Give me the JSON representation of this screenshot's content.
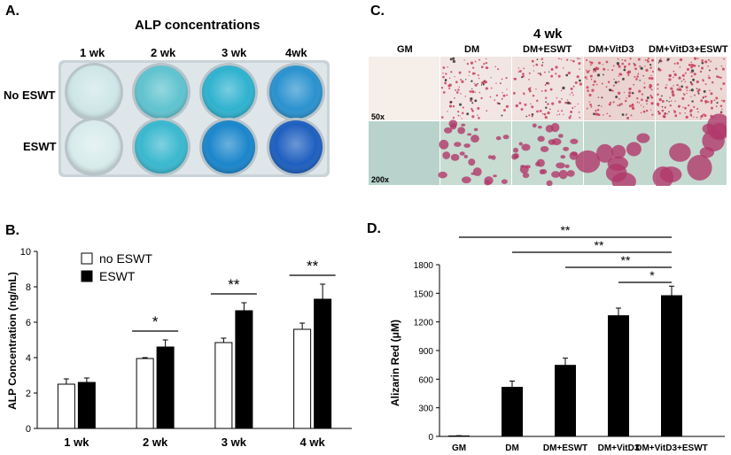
{
  "panel_labels": {
    "a": "A.",
    "b": "B.",
    "c": "C.",
    "d": "D."
  },
  "panel_a": {
    "title": "ALP concentrations",
    "col_labels": [
      "1 wk",
      "2 wk",
      "3 wk",
      "4wk"
    ],
    "row_labels": [
      "No ESWT",
      "ESWT"
    ],
    "well_colors": [
      [
        "#cfe7e8",
        "#5fc3cf",
        "#2fb2cf",
        "#2a92cf"
      ],
      [
        "#d9ecec",
        "#3ab8cf",
        "#1a86cb",
        "#1e5fbf"
      ]
    ]
  },
  "panel_c": {
    "title": "4 wk",
    "col_labels": [
      "GM",
      "DM",
      "DM+ESWT",
      "DM+VitD3",
      "DM+VitD3+ESWT"
    ],
    "row_labels": [
      "50x",
      "200x"
    ]
  },
  "chart_data": [
    {
      "type": "bar",
      "ylabel": "ALP  Concentration (ng/mL)",
      "categories": [
        "1 wk",
        "2 wk",
        "3 wk",
        "4 wk"
      ],
      "ylim": [
        0,
        10
      ],
      "yticks": [
        "0",
        "2",
        "4",
        "6",
        "8",
        "10"
      ],
      "series": [
        {
          "name": "no ESWT",
          "color": "#ffffff",
          "values": [
            2.5,
            3.95,
            4.85,
            5.6
          ],
          "errors": [
            0.3,
            0.05,
            0.25,
            0.35
          ]
        },
        {
          "name": "ESWT",
          "color": "#000000",
          "values": [
            2.6,
            4.6,
            6.65,
            7.3
          ],
          "errors": [
            0.25,
            0.4,
            0.45,
            0.85
          ]
        }
      ],
      "significance": [
        "",
        "*",
        "**",
        "**"
      ],
      "legend": "top-left"
    },
    {
      "type": "bar",
      "ylabel": "Alizarin Red (μM)",
      "categories": [
        "GM",
        "DM",
        "DM+ESWT",
        "DM+VitD3",
        "DM+VitD3+ESWT"
      ],
      "ylim": [
        0,
        1800
      ],
      "yticks": [
        "0",
        "300",
        "600",
        "900",
        "1200",
        "1500",
        "1800"
      ],
      "values": [
        5,
        515,
        745,
        1265,
        1475
      ],
      "errors": [
        3,
        65,
        75,
        80,
        100
      ],
      "color": "#000000",
      "significance": [
        {
          "from": "GM",
          "to": "DM+VitD3+ESWT",
          "label": "**"
        },
        {
          "from": "DM",
          "to": "DM+VitD3+ESWT",
          "label": "**"
        },
        {
          "from": "DM+ESWT",
          "to": "DM+VitD3+ESWT",
          "label": "**"
        },
        {
          "from": "DM+VitD3",
          "to": "DM+VitD3+ESWT",
          "label": "*"
        }
      ]
    }
  ]
}
